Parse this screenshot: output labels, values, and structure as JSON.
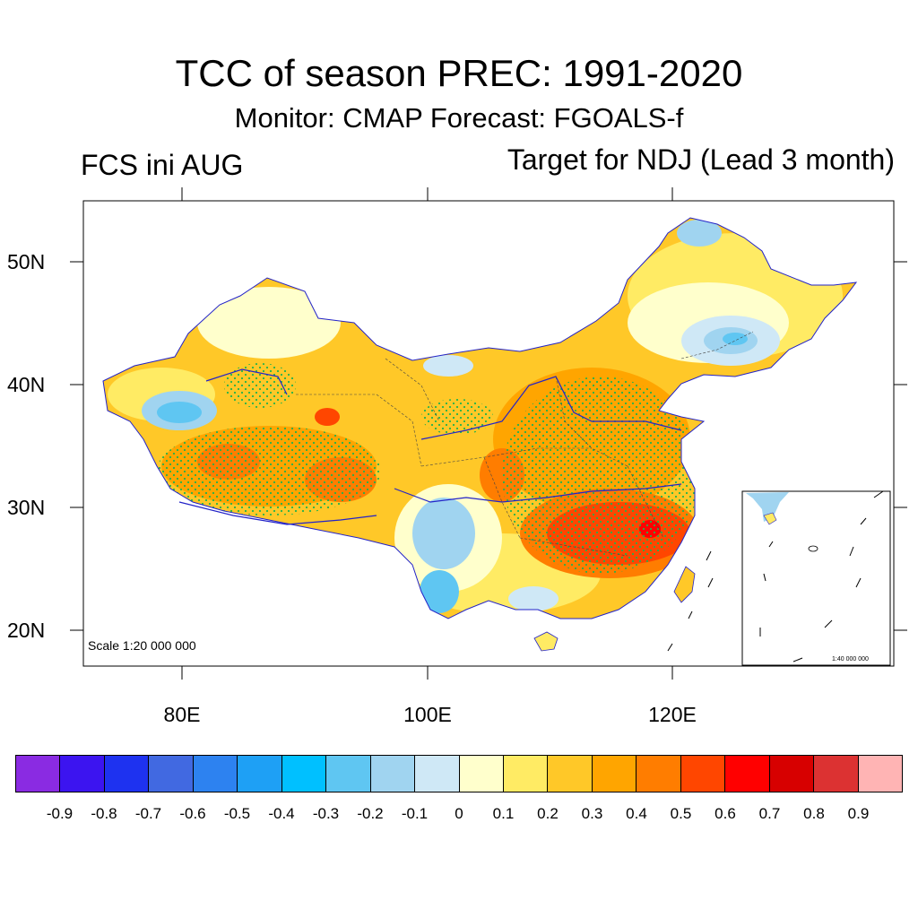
{
  "header": {
    "title": "TCC of season PREC: 1991-2020",
    "subtitle": "Monitor: CMAP   Forecast: FGOALS-f",
    "left_label": "FCS ini AUG",
    "right_label": "Target for NDJ (Lead 3 month)"
  },
  "map": {
    "lat_ticks": [
      "50N",
      "40N",
      "30N",
      "20N"
    ],
    "lon_ticks": [
      "80E",
      "100E",
      "120E"
    ],
    "scale_text": "Scale 1:20 000 000",
    "inset_scale_text": "1:40 000 000",
    "stipple_color": "#22b14c",
    "river_color": "#2323c8"
  },
  "colorbar": {
    "colors": [
      "#8a2be2",
      "#3c14f0",
      "#1e32f0",
      "#4169e1",
      "#2d82f0",
      "#1ea0f5",
      "#00c0ff",
      "#5fc6f2",
      "#a0d4f0",
      "#cfe8f6",
      "#ffffcc",
      "#ffeb64",
      "#ffc828",
      "#ffa500",
      "#ff7d00",
      "#ff4600",
      "#ff0000",
      "#d70000",
      "#dc3232",
      "#ffb4b4"
    ],
    "labels": [
      "-0.9",
      "-0.8",
      "-0.7",
      "-0.6",
      "-0.5",
      "-0.4",
      "-0.3",
      "-0.2",
      "-0.1",
      "0",
      "0.1",
      "0.2",
      "0.3",
      "0.4",
      "0.5",
      "0.6",
      "0.7",
      "0.8",
      "0.9"
    ]
  }
}
